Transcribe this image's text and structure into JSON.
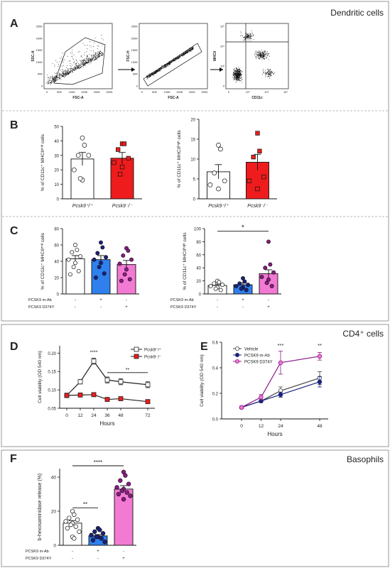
{
  "sections": {
    "dc": "Dendritic cells",
    "cd4": "CD4⁺ cells",
    "baso": "Basophils"
  },
  "panel_letters": {
    "A": "A",
    "B": "B",
    "C": "C",
    "D": "D",
    "E": "E",
    "F": "F"
  },
  "colors": {
    "wt": "#ffffff",
    "ko": "#ee1c1c",
    "pcsk9_ab": "#2f80ed",
    "d374y": "#f27ad2",
    "ab_point": "#1a237e",
    "d374y_point": "#8e1a8a"
  },
  "flow": {
    "plots": [
      {
        "ylabel": "SSC-A",
        "xlabel": "FSC-A",
        "yticks": [
          "250K",
          "200K",
          "150K",
          "100K",
          "50K",
          "0"
        ],
        "xticks": [
          "0",
          "50K",
          "100K",
          "150K",
          "200K",
          "250K"
        ]
      },
      {
        "ylabel": "FSC-H",
        "xlabel": "FSC-A",
        "yticks": [
          "250K",
          "200K",
          "150K",
          "100K",
          "50K",
          "0"
        ],
        "xticks": [
          "0",
          "50K",
          "100K",
          "150K",
          "200K",
          "250K"
        ]
      },
      {
        "ylabel": "MHCII",
        "xlabel": "CD11c",
        "yticks": [
          "10⁵",
          "10⁴",
          "10³",
          "0"
        ],
        "xticks": [
          "0",
          "10³",
          "10⁴",
          "10⁵"
        ]
      }
    ]
  },
  "chart_data": [
    {
      "id": "B1",
      "type": "bar",
      "ylabel": "% of CD11c⁺ MHCIIᵐⁱᵈ cells",
      "yticks": [
        "0",
        "10",
        "20",
        "30",
        "40",
        "50"
      ],
      "ylim": [
        0,
        50
      ],
      "categories": [
        "Pcsk9⁺/⁺",
        "Pcsk9⁻/⁻"
      ],
      "means": [
        27.5,
        28.0
      ],
      "sems": [
        4.5,
        4.0
      ],
      "points": [
        [
          42,
          37,
          30,
          30,
          20,
          13,
          14
        ],
        [
          38,
          38,
          34,
          28,
          25,
          22,
          17
        ]
      ]
    },
    {
      "id": "B2",
      "type": "bar",
      "ylabel": "% of CD11c⁺ MHCIIʰⁱᵍʰ cells",
      "yticks": [
        "0",
        "5",
        "10",
        "15",
        "20"
      ],
      "ylim": [
        0,
        20
      ],
      "categories": [
        "Pcsk9⁺/⁺",
        "Pcsk9⁻/⁻"
      ],
      "means": [
        6.8,
        9.2
      ],
      "sems": [
        1.8,
        2.0
      ],
      "points": [
        [
          13.5,
          12.5,
          6.5,
          4.5,
          3.5,
          2.5
        ],
        [
          16.5,
          12.0,
          10.5,
          5.5,
          4.5,
          2.5
        ]
      ]
    },
    {
      "id": "C1",
      "type": "bar",
      "ylabel": "% of CD11c⁺ MHCIIᵐⁱᵈ cells",
      "yticks": [
        "0",
        "20",
        "40",
        "60",
        "80"
      ],
      "ylim": [
        0,
        80
      ],
      "categories": [
        "",
        "",
        ""
      ],
      "means": [
        43,
        42,
        36
      ],
      "sems": [
        4,
        5,
        5
      ],
      "points": [
        [
          60,
          54,
          51,
          46,
          42,
          38,
          33,
          28,
          24
        ],
        [
          63,
          57,
          50,
          45,
          42,
          38,
          33,
          25,
          20
        ],
        [
          56,
          53,
          47,
          42,
          37,
          30,
          24,
          18,
          16
        ]
      ]
    },
    {
      "id": "C2",
      "type": "bar",
      "ylabel": "% of CD11c⁺ MHCIIʰⁱᵍʰ cells",
      "yticks": [
        "0",
        "20",
        "40",
        "60",
        "80",
        "100"
      ],
      "ylim": [
        0,
        100
      ],
      "categories": [
        "",
        "",
        ""
      ],
      "means": [
        13,
        14,
        31
      ],
      "sems": [
        2,
        3,
        6
      ],
      "points": [
        [
          20,
          18,
          16,
          14,
          12,
          10,
          8,
          6
        ],
        [
          24,
          19,
          16,
          14,
          12,
          10,
          8,
          6
        ],
        [
          80,
          45,
          40,
          33,
          26,
          22,
          17,
          12
        ]
      ],
      "annotation": "*"
    },
    {
      "id": "D",
      "type": "line",
      "ylabel": "Cell viability (OD 540 nm)",
      "xlabel": "Hours",
      "x": [
        0,
        12,
        24,
        36,
        48,
        72
      ],
      "xticks": [
        "0",
        "12",
        "24",
        "36",
        "48",
        "72"
      ],
      "yticks": [
        "0.05",
        "0.10",
        "0.15",
        "0.20"
      ],
      "ylim": [
        0.05,
        0.22
      ],
      "series": [
        {
          "name": "Pcsk9⁺/⁺",
          "values": [
            0.085,
            0.122,
            0.178,
            0.127,
            0.122,
            0.114
          ],
          "errs": [
            0.006,
            0.006,
            0.008,
            0.008,
            0.008,
            0.008
          ]
        },
        {
          "name": "Pcsk9⁻/⁻",
          "values": [
            0.085,
            0.086,
            0.087,
            0.074,
            0.076,
            0.068
          ],
          "errs": [
            0.006,
            0.005,
            0.005,
            0.004,
            0.004,
            0.004
          ]
        }
      ],
      "annotations": [
        "****",
        "**"
      ]
    },
    {
      "id": "E",
      "type": "line",
      "ylabel": "Cell viability (OD 540 nm)",
      "xlabel": "Hours",
      "x": [
        0,
        12,
        24,
        48
      ],
      "xticks": [
        "0",
        "12",
        "24",
        "48"
      ],
      "yticks": [
        "0.0",
        "0.2",
        "0.4",
        "0.6"
      ],
      "ylim": [
        0,
        0.6
      ],
      "series": [
        {
          "name": "Vehicle",
          "values": [
            0.09,
            0.14,
            0.22,
            0.32
          ],
          "errs": [
            0.01,
            0.01,
            0.03,
            0.05
          ]
        },
        {
          "name": "PCSK9 m-Ab",
          "values": [
            0.09,
            0.14,
            0.19,
            0.29
          ],
          "errs": [
            0.01,
            0.01,
            0.02,
            0.04
          ]
        },
        {
          "name": "PCSK9 D374Y",
          "values": [
            0.09,
            0.17,
            0.44,
            0.49
          ],
          "errs": [
            0.01,
            0.02,
            0.09,
            0.03
          ]
        }
      ],
      "annotations": [
        "***",
        "**"
      ]
    },
    {
      "id": "F",
      "type": "bar",
      "ylabel": "b-hexosaminidase release (%)",
      "yticks": [
        "0",
        "20",
        "40"
      ],
      "ylim": [
        0,
        45
      ],
      "categories": [
        "",
        "",
        ""
      ],
      "means": [
        13,
        5.5,
        33
      ],
      "sems": [
        1.5,
        0.8,
        2.0
      ],
      "points": [
        [
          20,
          18,
          16,
          15,
          14,
          13,
          12,
          11,
          10,
          8,
          5,
          4
        ],
        [
          10,
          9,
          8,
          7,
          6,
          5,
          5,
          4,
          3,
          2
        ],
        [
          43,
          41,
          38,
          36,
          34,
          33,
          32,
          31,
          30,
          29,
          27
        ]
      ],
      "annotations": [
        "****",
        "**"
      ]
    }
  ],
  "treatment_table": {
    "row1": "PCSK9 m-Ab",
    "row2": "PCSK9 D374Y",
    "signs3": [
      [
        "-",
        "+",
        "-"
      ],
      [
        "-",
        "-",
        "+"
      ]
    ]
  }
}
